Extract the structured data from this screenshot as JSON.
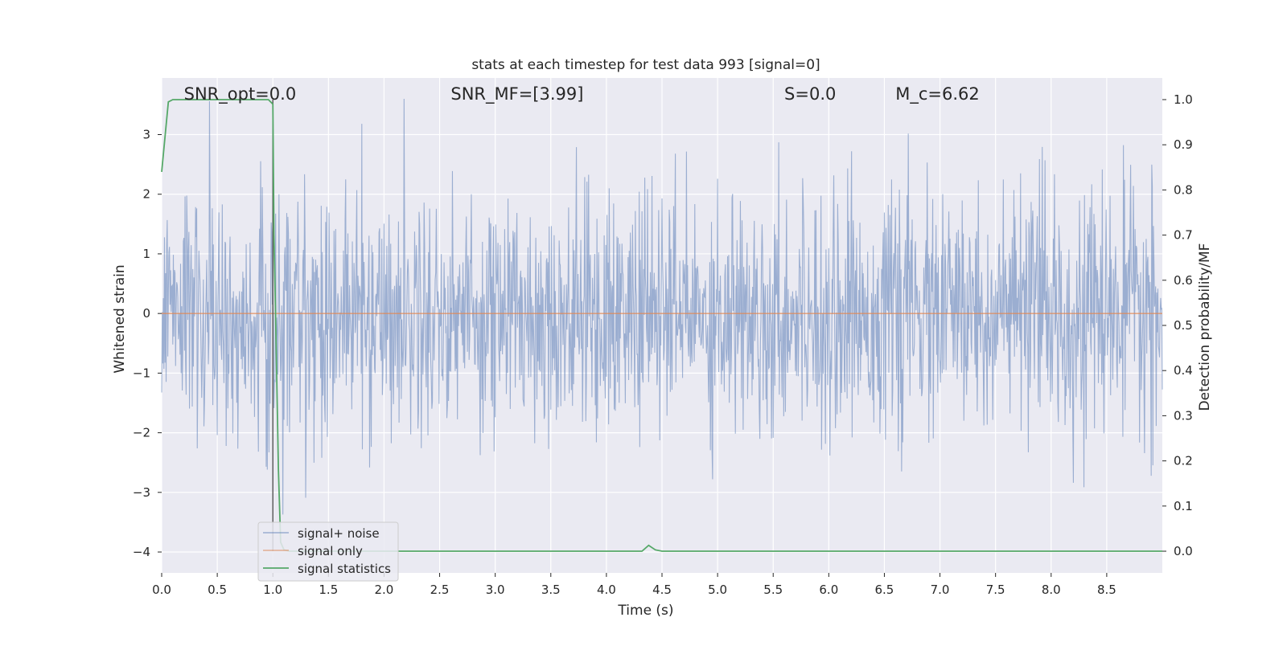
{
  "chart_data": {
    "type": "line",
    "title": "stats at each timestep for test data 993 [signal=0]",
    "xlabel": "Time (s)",
    "ylabel": "Whitened strain",
    "y2label": "Detection probability/MF",
    "xlim": [
      0.0,
      9.0
    ],
    "ylim": [
      -4.35,
      3.95
    ],
    "y2lim": [
      -0.048,
      1.048
    ],
    "xticks": [
      0.0,
      0.5,
      1.0,
      1.5,
      2.0,
      2.5,
      3.0,
      3.5,
      4.0,
      4.5,
      5.0,
      5.5,
      6.0,
      6.5,
      7.0,
      7.5,
      8.0,
      8.5
    ],
    "xtick_labels": [
      "0.0",
      "0.5",
      "1.0",
      "1.5",
      "2.0",
      "2.5",
      "3.0",
      "3.5",
      "4.0",
      "4.5",
      "5.0",
      "5.5",
      "6.0",
      "6.5",
      "7.0",
      "7.5",
      "8.0",
      "8.5"
    ],
    "yticks": [
      3,
      2,
      1,
      0,
      -1,
      -2,
      -3,
      -4
    ],
    "ytick_labels": [
      "3",
      "2",
      "1",
      "0",
      "−1",
      "−2",
      "−3",
      "−4"
    ],
    "y2ticks": [
      1.0,
      0.9,
      0.8,
      0.7,
      0.6,
      0.5,
      0.4,
      0.3,
      0.2,
      0.1,
      0.0
    ],
    "y2tick_labels": [
      "1.0",
      "0.9",
      "0.8",
      "0.7",
      "0.6",
      "0.5",
      "0.4",
      "0.3",
      "0.2",
      "0.1",
      "0.0"
    ],
    "grid": true,
    "legend_position": "bottom-left",
    "annotations": [
      {
        "text": "SNR_opt=0.0",
        "x": 0.2
      },
      {
        "text": "SNR_MF=[3.99]",
        "x": 2.6
      },
      {
        "text": "S=0.0",
        "x": 5.6
      },
      {
        "text": "M_c=6.62",
        "x": 6.6
      }
    ],
    "vline_x": 1.0,
    "series": [
      {
        "name": "signal+ noise",
        "color": "#4c72b0",
        "axis": "left",
        "style": "noise",
        "sigma": 1.0,
        "range": [
          -3.7,
          3.6
        ]
      },
      {
        "name": "signal only",
        "color": "#dd8452",
        "axis": "left",
        "x": [
          0.0,
          9.0
        ],
        "y": [
          0.0,
          0.0
        ]
      },
      {
        "name": "signal statistics",
        "color": "#55a868",
        "axis": "right",
        "x": [
          0.0,
          0.06,
          0.1,
          0.5,
          0.96,
          1.0,
          1.01,
          1.03,
          1.05,
          1.07,
          1.1,
          1.15,
          2.0,
          3.0,
          4.0,
          4.32,
          4.38,
          4.44,
          4.5,
          5.0,
          6.0,
          7.0,
          8.0,
          9.0
        ],
        "y": [
          0.84,
          0.995,
          1.0,
          1.0,
          1.0,
          0.99,
          0.7,
          0.45,
          0.18,
          0.02,
          0.003,
          0.0,
          0.0,
          0.0,
          0.0,
          0.0,
          0.013,
          0.003,
          0.0,
          0.0,
          0.0,
          0.0,
          0.0,
          0.0
        ]
      }
    ]
  }
}
